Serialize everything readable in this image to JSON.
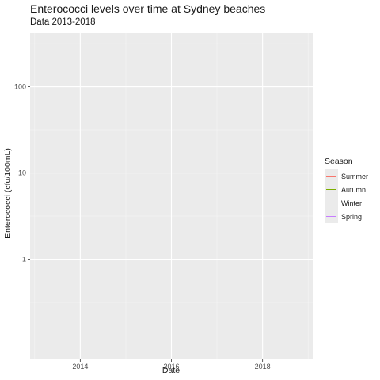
{
  "chart_data": {
    "type": "line",
    "title": "Enterococci levels over time at Sydney beaches",
    "subtitle": "Data 2013-2018",
    "xlabel": "Date",
    "ylabel": "Enterococci (cfu/100mL)",
    "x_ticks": [
      "2014",
      "2016",
      "2018"
    ],
    "y_scale": "log10",
    "y_ticks": [
      "1",
      "10",
      "100"
    ],
    "legend_title": "Season",
    "legend_position": "right",
    "grid": true,
    "series": [
      {
        "name": "Summer",
        "color": "#F8766D",
        "values": []
      },
      {
        "name": "Autumn",
        "color": "#7CAE00",
        "values": []
      },
      {
        "name": "Winter",
        "color": "#00BFC4",
        "values": []
      },
      {
        "name": "Spring",
        "color": "#C77CFF",
        "values": []
      }
    ]
  }
}
